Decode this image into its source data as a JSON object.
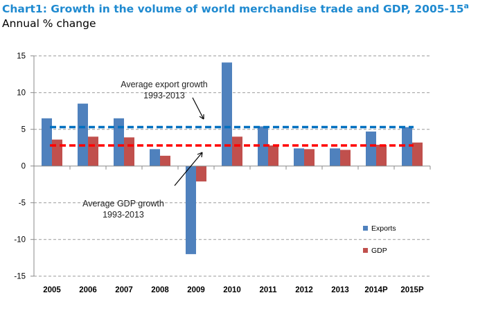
{
  "chart_data": {
    "type": "bar",
    "title": "Chart1: Growth in the volume of world merchandise trade and GDP, 2005-15",
    "title_superscript": "a",
    "subtitle": "Annual % change",
    "categories": [
      "2005",
      "2006",
      "2007",
      "2008",
      "2009",
      "2010",
      "2011",
      "2012",
      "2013",
      "2014P",
      "2015P"
    ],
    "series": [
      {
        "name": "Exports",
        "color": "#4f81bd",
        "values": [
          6.5,
          8.5,
          6.5,
          2.3,
          -12.0,
          14.1,
          5.4,
          2.4,
          2.4,
          4.7,
          5.3
        ]
      },
      {
        "name": "GDP",
        "color": "#c0504d",
        "values": [
          3.6,
          4.0,
          3.9,
          1.4,
          -2.1,
          4.0,
          2.8,
          2.3,
          2.2,
          2.9,
          3.2
        ]
      }
    ],
    "reference_lines": [
      {
        "label": "Average export growth",
        "label2": "1993-2013",
        "value": 5.3,
        "color": "#0070c0",
        "style": "dashed"
      },
      {
        "label": "Average GDP growth",
        "label2": "1993-2013",
        "value": 2.8,
        "color": "#ff0000",
        "style": "dashed"
      }
    ],
    "ylim": [
      -15,
      15
    ],
    "yticks": [
      15,
      10,
      5,
      0,
      -5,
      -10,
      -15
    ],
    "grid": true,
    "legend": "right"
  }
}
